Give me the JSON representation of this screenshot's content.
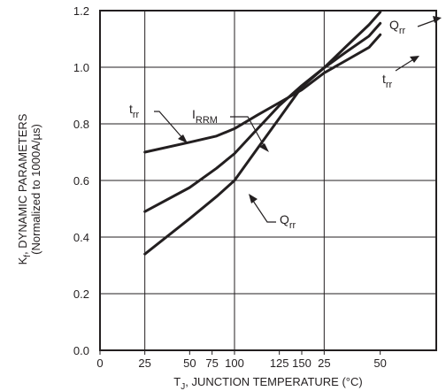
{
  "chart_data": {
    "type": "line",
    "title": "",
    "ylabel_line1": "K",
    "ylabel_sub": "f",
    "ylabel_rest": ", DYNAMIC PARAMETERS",
    "ylabel_line2": "(Normalized to 1000A/µs)",
    "xlabel_main": "T",
    "xlabel_sub": "J",
    "xlabel_rest": ", JUNCTION TEMPERATURE (°C)",
    "ylim": [
      0.0,
      1.2
    ],
    "xlim": [
      0,
      150
    ],
    "grid": true,
    "y_ticks": [
      "0.0",
      "0.2",
      "0.4",
      "0.6",
      "0.8",
      "1.0",
      "1.2"
    ],
    "x_ticks": [
      {
        "value": 0,
        "label": "0"
      },
      {
        "value": 20,
        "label": "25"
      },
      {
        "value": 40,
        "label": "50"
      },
      {
        "value": 50,
        "label": "75"
      },
      {
        "value": 60,
        "label": "100"
      },
      {
        "value": 80,
        "label": "125"
      },
      {
        "value": 90,
        "label": "150"
      },
      {
        "value": 100,
        "label": "25"
      },
      {
        "value": 125,
        "label": "50"
      }
    ],
    "series": [
      {
        "name": "trr",
        "label_main": "t",
        "label_sub": "rr",
        "x": [
          20,
          40,
          52,
          60,
          70,
          80,
          90,
          100,
          110,
          120,
          125
        ],
        "y": [
          0.7,
          0.735,
          0.757,
          0.783,
          0.83,
          0.875,
          0.92,
          0.98,
          1.025,
          1.07,
          1.115
        ]
      },
      {
        "name": "IRRM",
        "label_main": "I",
        "label_sub": "RRM",
        "x": [
          20,
          40,
          52,
          60,
          70,
          80,
          90,
          100,
          110,
          120,
          125
        ],
        "y": [
          0.49,
          0.575,
          0.643,
          0.695,
          0.78,
          0.865,
          0.935,
          0.998,
          1.055,
          1.11,
          1.155
        ]
      },
      {
        "name": "Qrr",
        "label_main": "Q",
        "label_sub": "rr",
        "x": [
          20,
          40,
          52,
          60,
          70,
          80,
          90,
          100,
          110,
          120,
          125
        ],
        "y": [
          0.34,
          0.465,
          0.543,
          0.6,
          0.71,
          0.82,
          0.93,
          0.998,
          1.075,
          1.15,
          1.195
        ]
      }
    ],
    "annotations": [
      {
        "main": "t",
        "sub": "rr",
        "refers_to": "trr"
      },
      {
        "main": "I",
        "sub": "RRM",
        "refers_to": "IRRM"
      },
      {
        "main": "Q",
        "sub": "rr",
        "refers_to": "Qrr"
      },
      {
        "main": "Q",
        "sub": "rr",
        "refers_to": "Qrr"
      },
      {
        "main": "t",
        "sub": "rr",
        "refers_to": "trr"
      }
    ]
  }
}
